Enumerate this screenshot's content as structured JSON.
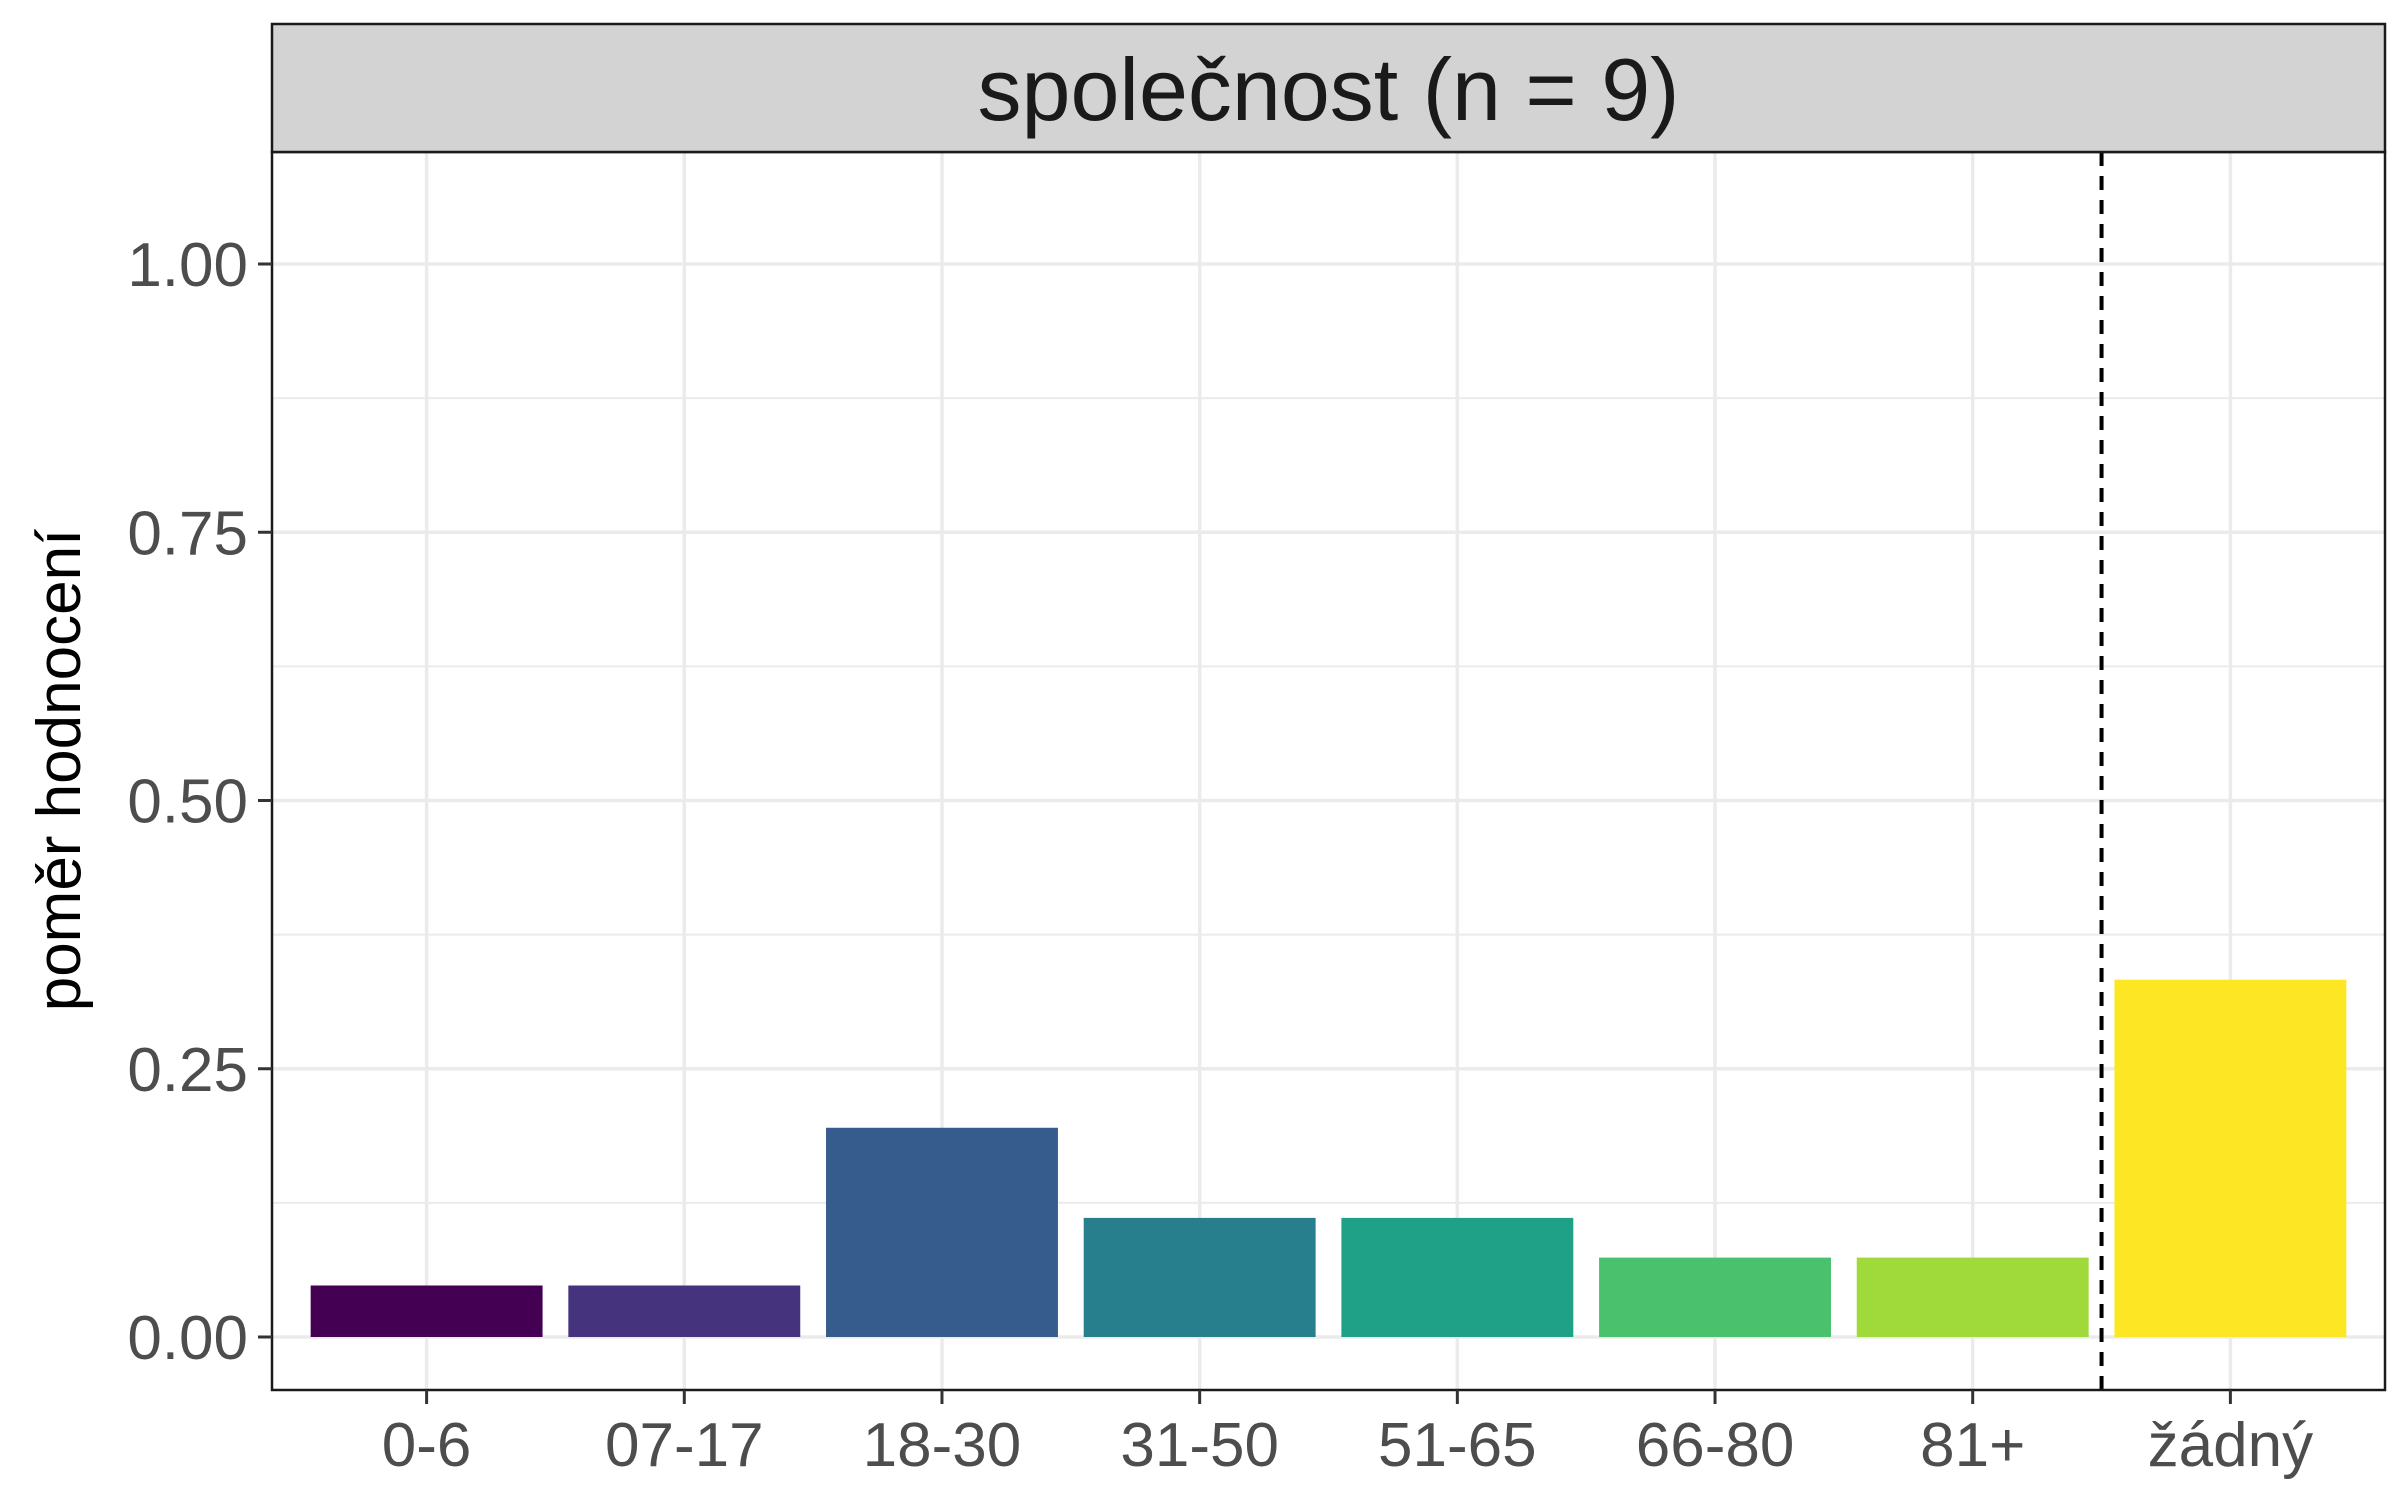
{
  "chart_data": {
    "type": "bar",
    "facet_title": "společnost (n = 9)",
    "ylabel": "poměr hodnocení",
    "xlabel": "",
    "categories": [
      "0-6",
      "07-17",
      "18-30",
      "31-50",
      "51-65",
      "66-80",
      "81+",
      "žádný"
    ],
    "values": [
      0.048,
      0.048,
      0.195,
      0.111,
      0.111,
      0.074,
      0.074,
      0.333
    ],
    "colors": [
      "#440154",
      "#46337E",
      "#365C8D",
      "#277F8E",
      "#1FA187",
      "#4AC16D",
      "#9FDA3A",
      "#FDE725"
    ],
    "ylim": [
      0,
      1.1
    ],
    "yticks": [
      0,
      0.25,
      0.5,
      0.75,
      1.0
    ],
    "ytick_labels": [
      "0.00",
      "0.25",
      "0.50",
      "0.75",
      "1.00"
    ],
    "separator_after_category": "81+",
    "grid": true,
    "legend": "none"
  }
}
